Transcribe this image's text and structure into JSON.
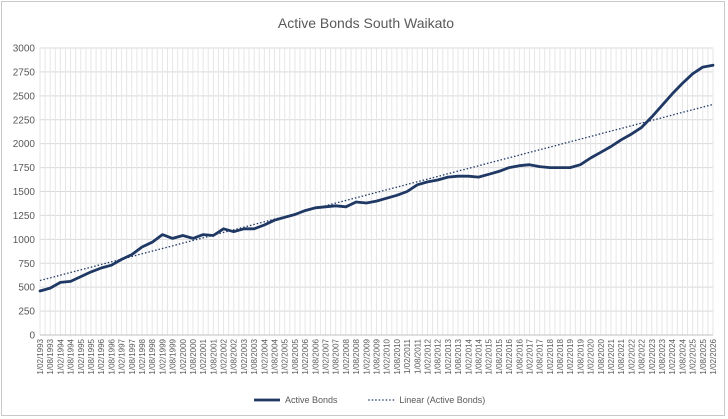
{
  "chart_data": {
    "type": "line",
    "title": "Active Bonds South Waikato",
    "xlabel": "",
    "ylabel": "",
    "ylim": [
      0,
      3000
    ],
    "yticks": [
      0,
      250,
      500,
      750,
      1000,
      1250,
      1500,
      1750,
      2000,
      2250,
      2500,
      2750,
      3000
    ],
    "x_range": [
      "1/02/1993",
      "1/02/2026"
    ],
    "x_tick_labels": [
      "1/02/1993",
      "1/08/1993",
      "1/02/1994",
      "1/08/1994",
      "1/02/1995",
      "1/08/1995",
      "1/02/1996",
      "1/08/1996",
      "1/02/1997",
      "1/08/1997",
      "1/02/1998",
      "1/08/1998",
      "1/02/1999",
      "1/08/1999",
      "1/02/2000",
      "1/08/2000",
      "1/02/2001",
      "1/08/2001",
      "1/02/2002",
      "1/08/2002",
      "1/02/2003",
      "1/08/2003",
      "1/02/2004",
      "1/08/2004",
      "1/02/2005",
      "1/08/2005",
      "1/02/2006",
      "1/08/2006",
      "1/02/2007",
      "1/08/2007",
      "1/02/2008",
      "1/08/2008",
      "1/02/2009",
      "1/08/2009",
      "1/02/2010",
      "1/08/2010",
      "1/02/2011",
      "1/08/2011",
      "1/02/2012",
      "1/08/2012",
      "1/02/2013",
      "1/08/2013",
      "1/02/2014",
      "1/08/2014",
      "1/02/2015",
      "1/08/2015",
      "1/02/2016",
      "1/08/2016",
      "1/02/2017",
      "1/08/2017",
      "1/02/2018",
      "1/08/2018",
      "1/02/2019",
      "1/08/2019",
      "1/02/2020",
      "1/08/2020",
      "1/02/2021",
      "1/08/2021",
      "1/02/2022",
      "1/08/2022",
      "1/02/2023",
      "1/08/2023",
      "1/02/2024",
      "1/08/2024",
      "1/02/2025",
      "1/08/2025",
      "1/02/2026"
    ],
    "grid": true,
    "legend_position": "bottom",
    "series": [
      {
        "name": "Active Bonds",
        "color": "#1f3864",
        "style": "solid",
        "points": [
          [
            "1993-02",
            460
          ],
          [
            "1993-08",
            490
          ],
          [
            "1994-02",
            550
          ],
          [
            "1994-08",
            560
          ],
          [
            "1995-02",
            610
          ],
          [
            "1995-08",
            660
          ],
          [
            "1996-02",
            700
          ],
          [
            "1996-08",
            730
          ],
          [
            "1997-02",
            790
          ],
          [
            "1997-08",
            840
          ],
          [
            "1998-02",
            920
          ],
          [
            "1998-08",
            970
          ],
          [
            "1999-02",
            1050
          ],
          [
            "1999-08",
            1010
          ],
          [
            "2000-02",
            1040
          ],
          [
            "2000-08",
            1010
          ],
          [
            "2001-02",
            1050
          ],
          [
            "2001-08",
            1040
          ],
          [
            "2002-02",
            1110
          ],
          [
            "2002-08",
            1080
          ],
          [
            "2003-02",
            1110
          ],
          [
            "2003-08",
            1110
          ],
          [
            "2004-02",
            1150
          ],
          [
            "2004-08",
            1200
          ],
          [
            "2005-02",
            1230
          ],
          [
            "2005-08",
            1260
          ],
          [
            "2006-02",
            1300
          ],
          [
            "2006-08",
            1330
          ],
          [
            "2007-02",
            1340
          ],
          [
            "2007-08",
            1350
          ],
          [
            "2008-02",
            1340
          ],
          [
            "2008-08",
            1390
          ],
          [
            "2009-02",
            1380
          ],
          [
            "2009-08",
            1400
          ],
          [
            "2010-02",
            1430
          ],
          [
            "2010-08",
            1460
          ],
          [
            "2011-02",
            1500
          ],
          [
            "2011-08",
            1570
          ],
          [
            "2012-02",
            1600
          ],
          [
            "2012-08",
            1620
          ],
          [
            "2013-02",
            1650
          ],
          [
            "2013-08",
            1660
          ],
          [
            "2014-02",
            1660
          ],
          [
            "2014-08",
            1650
          ],
          [
            "2015-02",
            1680
          ],
          [
            "2015-08",
            1710
          ],
          [
            "2016-02",
            1750
          ],
          [
            "2016-08",
            1770
          ],
          [
            "2017-02",
            1780
          ],
          [
            "2017-08",
            1760
          ],
          [
            "2018-02",
            1750
          ],
          [
            "2018-08",
            1750
          ],
          [
            "2019-02",
            1750
          ],
          [
            "2019-08",
            1780
          ],
          [
            "2020-02",
            1850
          ],
          [
            "2020-08",
            1910
          ],
          [
            "2021-02",
            1970
          ],
          [
            "2021-08",
            2040
          ],
          [
            "2022-02",
            2100
          ],
          [
            "2022-08",
            2170
          ],
          [
            "2023-02",
            2280
          ],
          [
            "2023-08",
            2400
          ],
          [
            "2024-02",
            2520
          ],
          [
            "2024-08",
            2630
          ],
          [
            "2025-02",
            2730
          ],
          [
            "2025-08",
            2800
          ],
          [
            "2026-02",
            2820
          ]
        ]
      },
      {
        "name": "Linear (Active Bonds)",
        "color": "#1f3864",
        "style": "dotted",
        "points": [
          [
            "1993-02",
            570
          ],
          [
            "2026-02",
            2410
          ]
        ]
      }
    ]
  }
}
